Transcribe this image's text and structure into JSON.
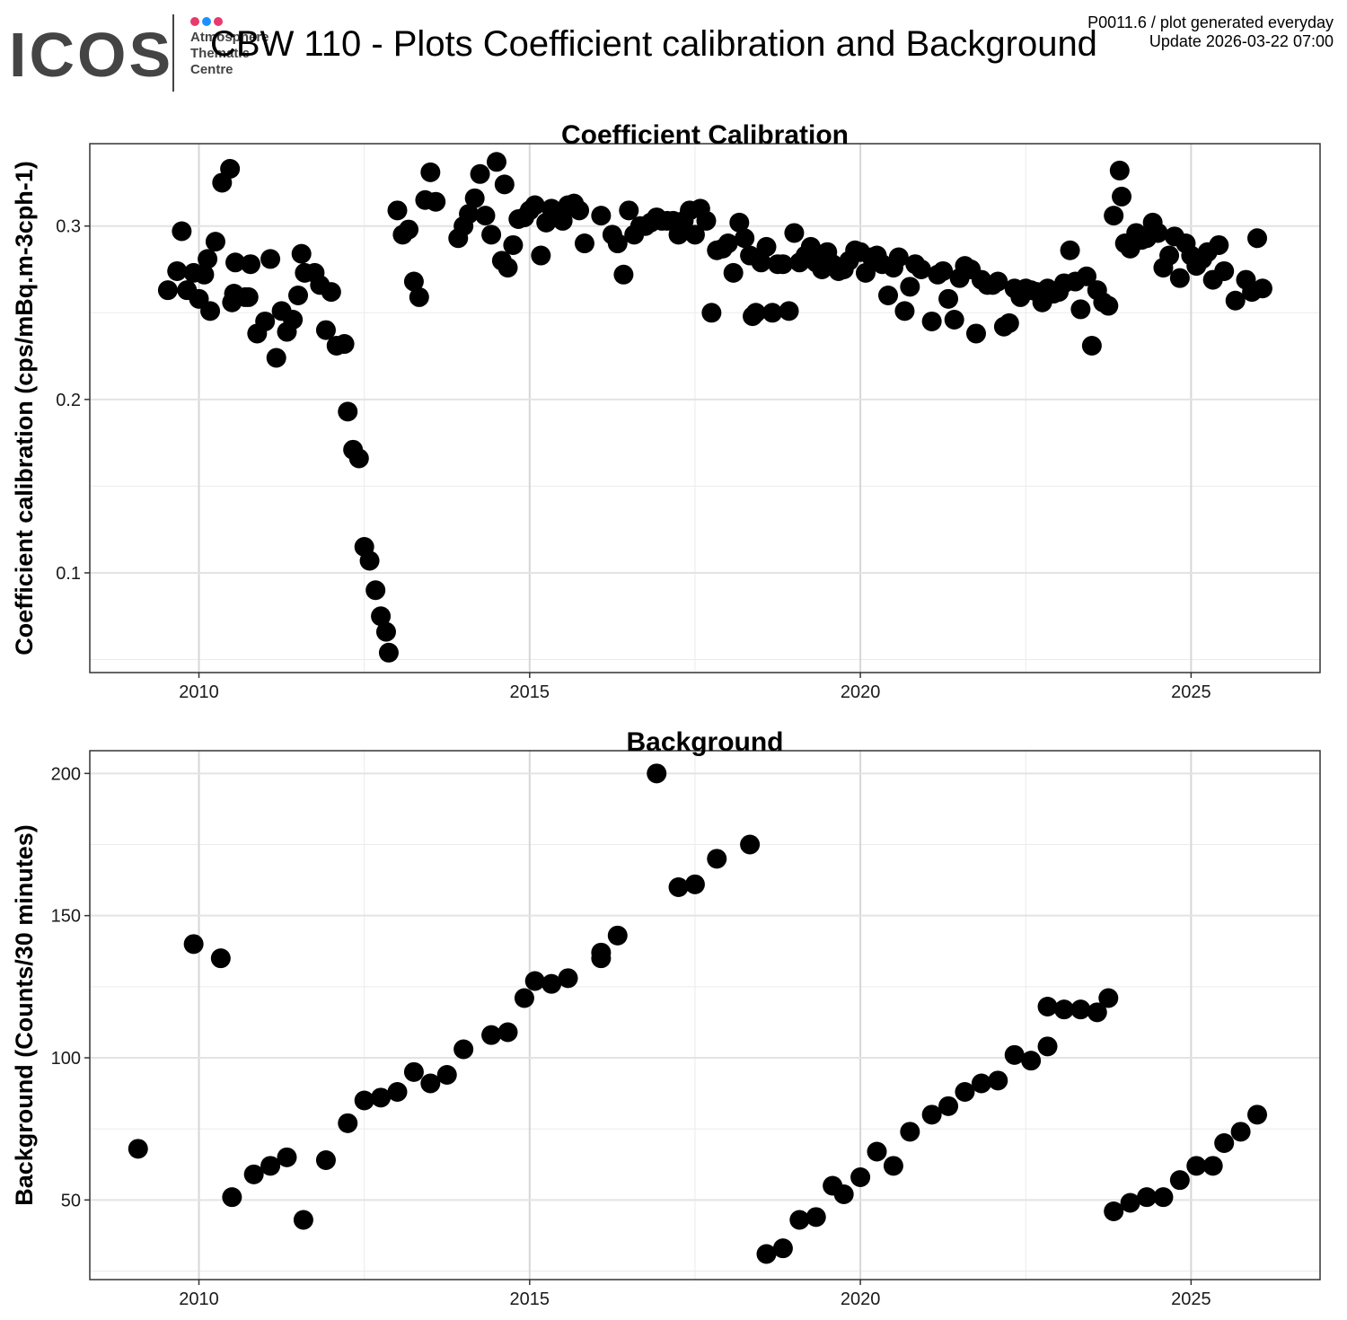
{
  "header": {
    "logo_word": "ICOS",
    "logo_lines": [
      "Atmosphere",
      "Thematic",
      "Centre"
    ],
    "logo_dot_colors": [
      "#e63a6e",
      "#1e90ff",
      "#e63a6e"
    ],
    "title": "CBW 110 - Plots Coefficient calibration and Background",
    "meta_line1": "P0011.6 / plot generated everyday",
    "meta_line2": "Update  2026-03-22 07:00"
  },
  "chart_data": [
    {
      "type": "scatter",
      "title": "Coefficient Calibration",
      "xlabel": "",
      "ylabel": "Coefficient calibration (cps/mBq.m-3cph-1)",
      "xlim": [
        2008.35,
        2026.95
      ],
      "ylim": [
        0.0425,
        0.3475
      ],
      "xticks": [
        2010,
        2015,
        2020,
        2025
      ],
      "yticks": [
        0.1,
        0.2,
        0.3
      ],
      "grid": true,
      "marker_color": "#000000",
      "points": [
        [
          2009.53,
          0.263
        ],
        [
          2009.67,
          0.274
        ],
        [
          2009.74,
          0.297
        ],
        [
          2009.82,
          0.263
        ],
        [
          2009.92,
          0.273
        ],
        [
          2010.0,
          0.258
        ],
        [
          2010.08,
          0.272
        ],
        [
          2010.13,
          0.281
        ],
        [
          2010.17,
          0.251
        ],
        [
          2010.25,
          0.291
        ],
        [
          2010.35,
          0.325
        ],
        [
          2010.47,
          0.333
        ],
        [
          2010.5,
          0.256
        ],
        [
          2010.53,
          0.261
        ],
        [
          2010.55,
          0.279
        ],
        [
          2010.7,
          0.259
        ],
        [
          2010.75,
          0.259
        ],
        [
          2010.78,
          0.278
        ],
        [
          2010.88,
          0.238
        ],
        [
          2011.0,
          0.245
        ],
        [
          2011.08,
          0.281
        ],
        [
          2011.17,
          0.224
        ],
        [
          2011.25,
          0.251
        ],
        [
          2011.33,
          0.239
        ],
        [
          2011.42,
          0.246
        ],
        [
          2011.5,
          0.26
        ],
        [
          2011.55,
          0.284
        ],
        [
          2011.6,
          0.273
        ],
        [
          2011.75,
          0.273
        ],
        [
          2011.83,
          0.266
        ],
        [
          2011.92,
          0.24
        ],
        [
          2012.0,
          0.262
        ],
        [
          2012.08,
          0.231
        ],
        [
          2012.2,
          0.232
        ],
        [
          2012.25,
          0.193
        ],
        [
          2012.33,
          0.171
        ],
        [
          2012.42,
          0.166
        ],
        [
          2012.5,
          0.115
        ],
        [
          2012.58,
          0.107
        ],
        [
          2012.67,
          0.09
        ],
        [
          2012.75,
          0.075
        ],
        [
          2012.83,
          0.066
        ],
        [
          2012.87,
          0.054
        ],
        [
          2013.0,
          0.309
        ],
        [
          2013.08,
          0.295
        ],
        [
          2013.17,
          0.298
        ],
        [
          2013.25,
          0.268
        ],
        [
          2013.33,
          0.259
        ],
        [
          2013.42,
          0.315
        ],
        [
          2013.5,
          0.331
        ],
        [
          2013.58,
          0.314
        ],
        [
          2013.92,
          0.293
        ],
        [
          2014.0,
          0.3
        ],
        [
          2014.08,
          0.307
        ],
        [
          2014.17,
          0.316
        ],
        [
          2014.25,
          0.33
        ],
        [
          2014.33,
          0.306
        ],
        [
          2014.42,
          0.295
        ],
        [
          2014.5,
          0.337
        ],
        [
          2014.58,
          0.28
        ],
        [
          2014.62,
          0.324
        ],
        [
          2014.67,
          0.276
        ],
        [
          2014.75,
          0.289
        ],
        [
          2014.83,
          0.304
        ],
        [
          2014.92,
          0.305
        ],
        [
          2015.0,
          0.309
        ],
        [
          2015.08,
          0.312
        ],
        [
          2015.17,
          0.283
        ],
        [
          2015.25,
          0.302
        ],
        [
          2015.33,
          0.31
        ],
        [
          2015.42,
          0.308
        ],
        [
          2015.5,
          0.303
        ],
        [
          2015.58,
          0.312
        ],
        [
          2015.67,
          0.313
        ],
        [
          2015.75,
          0.309
        ],
        [
          2015.83,
          0.29
        ],
        [
          2016.08,
          0.306
        ],
        [
          2016.25,
          0.295
        ],
        [
          2016.33,
          0.29
        ],
        [
          2016.42,
          0.272
        ],
        [
          2016.5,
          0.309
        ],
        [
          2016.58,
          0.295
        ],
        [
          2016.67,
          0.3
        ],
        [
          2016.75,
          0.3
        ],
        [
          2016.83,
          0.302
        ],
        [
          2016.92,
          0.305
        ],
        [
          2017.0,
          0.303
        ],
        [
          2017.08,
          0.303
        ],
        [
          2017.17,
          0.303
        ],
        [
          2017.25,
          0.295
        ],
        [
          2017.33,
          0.303
        ],
        [
          2017.42,
          0.309
        ],
        [
          2017.5,
          0.295
        ],
        [
          2017.58,
          0.31
        ],
        [
          2017.67,
          0.303
        ],
        [
          2017.75,
          0.25
        ],
        [
          2017.83,
          0.286
        ],
        [
          2017.92,
          0.287
        ],
        [
          2018.0,
          0.29
        ],
        [
          2018.08,
          0.273
        ],
        [
          2018.17,
          0.302
        ],
        [
          2018.25,
          0.293
        ],
        [
          2018.33,
          0.283
        ],
        [
          2018.37,
          0.248
        ],
        [
          2018.42,
          0.25
        ],
        [
          2018.5,
          0.279
        ],
        [
          2018.58,
          0.288
        ],
        [
          2018.67,
          0.25
        ],
        [
          2018.75,
          0.278
        ],
        [
          2018.83,
          0.278
        ],
        [
          2018.92,
          0.251
        ],
        [
          2019.0,
          0.296
        ],
        [
          2019.08,
          0.279
        ],
        [
          2019.17,
          0.283
        ],
        [
          2019.25,
          0.288
        ],
        [
          2019.33,
          0.279
        ],
        [
          2019.42,
          0.275
        ],
        [
          2019.5,
          0.285
        ],
        [
          2019.58,
          0.278
        ],
        [
          2019.67,
          0.274
        ],
        [
          2019.75,
          0.275
        ],
        [
          2019.83,
          0.28
        ],
        [
          2019.92,
          0.286
        ],
        [
          2020.0,
          0.285
        ],
        [
          2020.08,
          0.273
        ],
        [
          2020.17,
          0.282
        ],
        [
          2020.25,
          0.283
        ],
        [
          2020.33,
          0.278
        ],
        [
          2020.42,
          0.26
        ],
        [
          2020.5,
          0.276
        ],
        [
          2020.58,
          0.282
        ],
        [
          2020.67,
          0.251
        ],
        [
          2020.75,
          0.265
        ],
        [
          2020.83,
          0.278
        ],
        [
          2020.92,
          0.275
        ],
        [
          2021.08,
          0.245
        ],
        [
          2021.17,
          0.272
        ],
        [
          2021.25,
          0.274
        ],
        [
          2021.33,
          0.258
        ],
        [
          2021.42,
          0.246
        ],
        [
          2021.5,
          0.27
        ],
        [
          2021.58,
          0.277
        ],
        [
          2021.67,
          0.275
        ],
        [
          2021.75,
          0.238
        ],
        [
          2021.83,
          0.269
        ],
        [
          2021.92,
          0.266
        ],
        [
          2022.0,
          0.266
        ],
        [
          2022.08,
          0.268
        ],
        [
          2022.17,
          0.242
        ],
        [
          2022.25,
          0.244
        ],
        [
          2022.33,
          0.264
        ],
        [
          2022.42,
          0.259
        ],
        [
          2022.5,
          0.264
        ],
        [
          2022.58,
          0.263
        ],
        [
          2022.67,
          0.262
        ],
        [
          2022.75,
          0.256
        ],
        [
          2022.83,
          0.264
        ],
        [
          2022.92,
          0.261
        ],
        [
          2023.0,
          0.262
        ],
        [
          2023.08,
          0.267
        ],
        [
          2023.17,
          0.286
        ],
        [
          2023.25,
          0.268
        ],
        [
          2023.33,
          0.252
        ],
        [
          2023.42,
          0.271
        ],
        [
          2023.5,
          0.231
        ],
        [
          2023.58,
          0.263
        ],
        [
          2023.67,
          0.256
        ],
        [
          2023.75,
          0.254
        ],
        [
          2023.83,
          0.306
        ],
        [
          2023.92,
          0.332
        ],
        [
          2023.95,
          0.317
        ],
        [
          2024.0,
          0.29
        ],
        [
          2024.08,
          0.287
        ],
        [
          2024.17,
          0.296
        ],
        [
          2024.25,
          0.292
        ],
        [
          2024.33,
          0.293
        ],
        [
          2024.42,
          0.302
        ],
        [
          2024.5,
          0.296
        ],
        [
          2024.58,
          0.276
        ],
        [
          2024.67,
          0.283
        ],
        [
          2024.75,
          0.294
        ],
        [
          2024.83,
          0.27
        ],
        [
          2024.92,
          0.29
        ],
        [
          2025.0,
          0.283
        ],
        [
          2025.08,
          0.277
        ],
        [
          2025.17,
          0.281
        ],
        [
          2025.25,
          0.285
        ],
        [
          2025.33,
          0.269
        ],
        [
          2025.42,
          0.289
        ],
        [
          2025.5,
          0.274
        ],
        [
          2025.67,
          0.257
        ],
        [
          2025.83,
          0.269
        ],
        [
          2025.92,
          0.262
        ],
        [
          2026.0,
          0.293
        ],
        [
          2026.08,
          0.264
        ]
      ]
    },
    {
      "type": "scatter",
      "title": "Background",
      "xlabel": "",
      "ylabel": "Background (Counts/30 minutes)",
      "xlim": [
        2008.35,
        2026.95
      ],
      "ylim": [
        22,
        208
      ],
      "xticks": [
        2010,
        2015,
        2020,
        2025
      ],
      "yticks": [
        50,
        100,
        150,
        200
      ],
      "grid": true,
      "marker_color": "#000000",
      "points": [
        [
          2009.08,
          68
        ],
        [
          2009.92,
          140
        ],
        [
          2010.33,
          135
        ],
        [
          2010.5,
          51
        ],
        [
          2010.83,
          59
        ],
        [
          2011.08,
          62
        ],
        [
          2011.33,
          65
        ],
        [
          2011.58,
          43
        ],
        [
          2011.92,
          64
        ],
        [
          2012.25,
          77
        ],
        [
          2012.5,
          85
        ],
        [
          2012.75,
          86
        ],
        [
          2013.0,
          88
        ],
        [
          2013.25,
          95
        ],
        [
          2013.5,
          91
        ],
        [
          2013.75,
          94
        ],
        [
          2014.0,
          103
        ],
        [
          2014.42,
          108
        ],
        [
          2014.67,
          109
        ],
        [
          2014.92,
          121
        ],
        [
          2015.08,
          127
        ],
        [
          2015.33,
          126
        ],
        [
          2015.58,
          128
        ],
        [
          2016.08,
          137
        ],
        [
          2016.08,
          135
        ],
        [
          2016.33,
          143
        ],
        [
          2016.92,
          200
        ],
        [
          2017.25,
          160
        ],
        [
          2017.5,
          161
        ],
        [
          2017.83,
          170
        ],
        [
          2018.33,
          175
        ],
        [
          2018.58,
          31
        ],
        [
          2018.83,
          33
        ],
        [
          2019.08,
          43
        ],
        [
          2019.33,
          44
        ],
        [
          2019.58,
          55
        ],
        [
          2019.75,
          52
        ],
        [
          2020.0,
          58
        ],
        [
          2020.25,
          67
        ],
        [
          2020.5,
          62
        ],
        [
          2020.75,
          74
        ],
        [
          2021.08,
          80
        ],
        [
          2021.33,
          83
        ],
        [
          2021.58,
          88
        ],
        [
          2021.83,
          91
        ],
        [
          2022.08,
          92
        ],
        [
          2022.33,
          101
        ],
        [
          2022.58,
          99
        ],
        [
          2022.83,
          104
        ],
        [
          2022.83,
          118
        ],
        [
          2023.08,
          117
        ],
        [
          2023.33,
          117
        ],
        [
          2023.58,
          116
        ],
        [
          2023.75,
          121
        ],
        [
          2023.83,
          46
        ],
        [
          2024.08,
          49
        ],
        [
          2024.33,
          51
        ],
        [
          2024.58,
          51
        ],
        [
          2024.83,
          57
        ],
        [
          2025.08,
          62
        ],
        [
          2025.33,
          62
        ],
        [
          2025.5,
          70
        ],
        [
          2025.75,
          74
        ],
        [
          2026.0,
          80
        ]
      ]
    }
  ]
}
